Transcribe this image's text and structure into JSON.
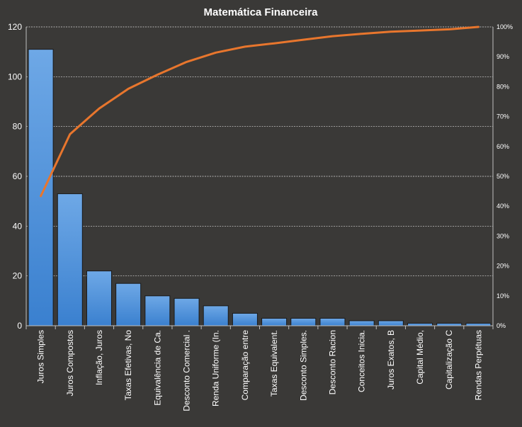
{
  "chart_data": {
    "type": "bar",
    "title": "Matemática Financeira",
    "categories": [
      "Juros Simples",
      "Juros Compostos",
      "Inflação, Juros",
      "Taxas Efetivas, No",
      "Equivalência de Ca.",
      "Desconto Comercial .",
      "Renda Uniforme (In.",
      "Comparação entre",
      "Taxas Equivalent.",
      "Desconto Simples.",
      "Desconto Racion",
      "Conceitos Inicia.",
      "Juros Exatos, B",
      "Capital Médio,",
      "Capitalização C",
      "Rendas Perpétuas"
    ],
    "series": [
      {
        "type": "bar",
        "axis": "left",
        "color": "#4a90d9",
        "values": [
          111,
          53,
          22,
          17,
          12,
          11,
          8,
          5,
          3,
          3,
          3,
          2,
          2,
          1,
          1,
          1
        ]
      },
      {
        "type": "line",
        "axis": "right",
        "color": "#e8762d",
        "values": [
          43.4,
          64.1,
          72.7,
          79.3,
          84.0,
          88.3,
          91.4,
          93.4,
          94.5,
          95.7,
          96.9,
          97.7,
          98.4,
          98.8,
          99.2,
          100.0
        ]
      }
    ],
    "ylim": [
      0,
      120
    ],
    "yticks": [
      "0",
      "20",
      "40",
      "60",
      "80",
      "100",
      "120"
    ],
    "y2lim": [
      0,
      100
    ],
    "y2ticks": [
      "0%",
      "10%",
      "20%",
      "30%",
      "40%",
      "50%",
      "60%",
      "70%",
      "80%",
      "90%",
      "100%"
    ],
    "xlabel": "",
    "ylabel": "",
    "grid": true,
    "legend": "none",
    "background": "#3a3937"
  }
}
